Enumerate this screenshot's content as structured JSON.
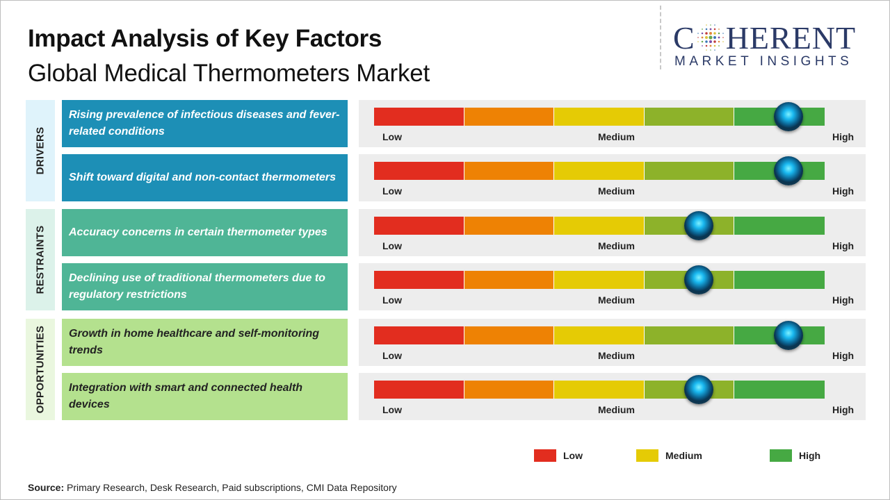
{
  "header": {
    "title": "Impact Analysis of Key Factors",
    "subtitle": "Global Medical Thermometers Market"
  },
  "logo": {
    "line1_left": "C",
    "line1_right": "HERENT",
    "line2": "MARKET INSIGHTS"
  },
  "colors": {
    "low": "#e22d1f",
    "low_medium": "#ee8204",
    "medium": "#e5cb05",
    "medium_high": "#8db22a",
    "high": "#46a943",
    "drivers": "#1d8fb6",
    "restraints": "#4fb596",
    "opportunities": "#b4e18e",
    "drivers_band": "#dff3fb",
    "restraints_band": "#dcf2ea",
    "opportunities_band": "#eaf7df"
  },
  "gauge_labels": {
    "low": "Low",
    "medium": "Medium",
    "high": "High"
  },
  "chart_data": {
    "type": "table",
    "scale": [
      "Low",
      "Medium",
      "High"
    ],
    "impact_range": [
      0,
      5
    ],
    "groups": [
      {
        "category": "DRIVERS",
        "factors": [
          {
            "text": "Rising prevalence of infectious diseases and fever-related conditions",
            "impact": 4.6
          },
          {
            "text": "Shift toward digital and non-contact thermometers",
            "impact": 4.6
          }
        ]
      },
      {
        "category": "RESTRAINTS",
        "factors": [
          {
            "text": "Accuracy concerns in certain thermometer types",
            "impact": 3.6
          },
          {
            "text": "Declining use of traditional thermometers due to regulatory restrictions",
            "impact": 3.6
          }
        ]
      },
      {
        "category": "OPPORTUNITIES",
        "factors": [
          {
            "text": "Growth in home healthcare and self-monitoring trends",
            "impact": 4.6
          },
          {
            "text": "Integration with smart and connected health devices",
            "impact": 3.6
          }
        ]
      }
    ]
  },
  "legend": [
    {
      "label": "Low",
      "color": "#e22d1f"
    },
    {
      "label": "Medium",
      "color": "#e5cb05"
    },
    {
      "label": "High",
      "color": "#46a943"
    }
  ],
  "source": {
    "prefix": "Source:",
    "text": " Primary Research, Desk Research, Paid subscriptions, CMI Data Repository"
  }
}
